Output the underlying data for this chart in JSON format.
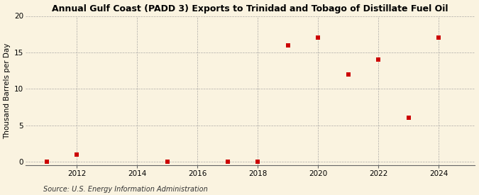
{
  "title": "Annual Gulf Coast (PADD 3) Exports to Trinidad and Tobago of Distillate Fuel Oil",
  "ylabel": "Thousand Barrels per Day",
  "source": "Source: U.S. Energy Information Administration",
  "x": [
    2011,
    2012,
    2015,
    2017,
    2018,
    2019,
    2020,
    2021,
    2022,
    2023,
    2024
  ],
  "y": [
    0.0,
    1.0,
    0.0,
    0.0,
    0.0,
    16.0,
    17.0,
    12.0,
    14.0,
    6.0,
    17.0
  ],
  "xlim": [
    2010.3,
    2025.2
  ],
  "ylim": [
    -0.5,
    20
  ],
  "yticks": [
    0,
    5,
    10,
    15,
    20
  ],
  "xticks": [
    2012,
    2014,
    2016,
    2018,
    2020,
    2022,
    2024
  ],
  "marker_color": "#cc0000",
  "marker": "s",
  "marker_size": 4,
  "background_color": "#faf3e0",
  "grid_color": "#999999",
  "title_fontsize": 9.0,
  "label_fontsize": 7.5,
  "tick_fontsize": 7.5,
  "source_fontsize": 7.0
}
